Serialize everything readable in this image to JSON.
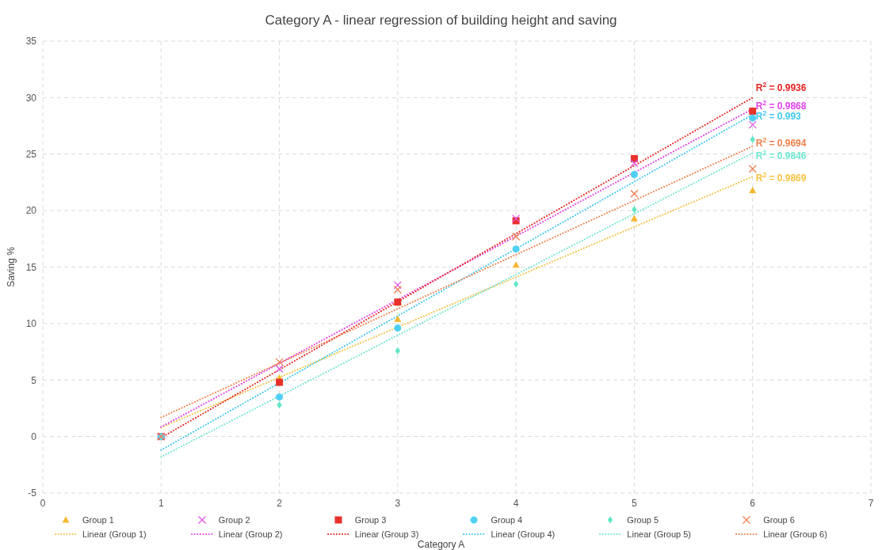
{
  "chart_data": {
    "type": "scatter",
    "title": "Category A - linear regression of building height and saving",
    "xlabel": "Category A",
    "ylabel": "Saving %",
    "xlim": [
      0,
      7
    ],
    "xticks": [
      0,
      1,
      2,
      3,
      4,
      5,
      6,
      7
    ],
    "ylim": [
      -5,
      35
    ],
    "yticks": [
      -5,
      0,
      5,
      10,
      15,
      20,
      25,
      30,
      35
    ],
    "grid": true,
    "legend": "bottom",
    "series": [
      {
        "name": "Group 1",
        "marker": "triangle",
        "color": "#f4b731",
        "x": [
          2,
          3,
          4,
          5,
          6
        ],
        "values": [
          5.2,
          10.4,
          15.2,
          19.3,
          21.8
        ]
      },
      {
        "name": "Group 2",
        "marker": "cross",
        "color": "#e055e8",
        "x": [
          1,
          2,
          3,
          4,
          5,
          6
        ],
        "values": [
          0,
          6.0,
          13.4,
          19.3,
          24.2,
          27.6
        ]
      },
      {
        "name": "Group 3",
        "marker": "square",
        "color": "#e8312a",
        "x": [
          1,
          2,
          3,
          4,
          5,
          6
        ],
        "values": [
          0,
          4.8,
          11.9,
          19.1,
          24.6,
          28.8
        ]
      },
      {
        "name": "Group 4",
        "marker": "circle",
        "color": "#4fd0f5",
        "x": [
          1,
          2,
          3,
          4,
          5,
          6
        ],
        "values": [
          0,
          3.5,
          9.6,
          16.6,
          23.2,
          28.2
        ]
      },
      {
        "name": "Group 5",
        "marker": "diamond",
        "color": "#5ee8c4",
        "x": [
          1,
          2,
          3,
          4,
          5,
          6
        ],
        "values": [
          0,
          2.8,
          7.6,
          13.5,
          20.1,
          26.3
        ]
      },
      {
        "name": "Group 6",
        "marker": "cross",
        "color": "#f07f4f",
        "x": [
          1,
          2,
          3,
          4,
          5,
          6
        ],
        "values": [
          0,
          6.6,
          13.0,
          17.7,
          21.5,
          23.7
        ]
      },
      {
        "name": "Linear (Group 1)",
        "type": "line",
        "line_style": "dotted",
        "color": "#f5c242",
        "x": [
          1,
          6
        ],
        "values": [
          0.8,
          23.0
        ]
      },
      {
        "name": "Linear (Group 2)",
        "type": "line",
        "line_style": "dotted",
        "color": "#e040e8",
        "x": [
          1,
          6
        ],
        "values": [
          0.85,
          29.0
        ]
      },
      {
        "name": "Linear (Group 3)",
        "type": "line",
        "line_style": "dotted",
        "color": "#e8231f",
        "x": [
          1,
          6
        ],
        "values": [
          -0.1,
          30.0
        ]
      },
      {
        "name": "Linear (Group 4)",
        "type": "line",
        "line_style": "dotted",
        "color": "#3fc8f0",
        "x": [
          1,
          6
        ],
        "values": [
          -1.2,
          28.5
        ]
      },
      {
        "name": "Linear (Group 5)",
        "type": "line",
        "line_style": "dotted",
        "color": "#6ee8d0",
        "x": [
          1,
          6
        ],
        "values": [
          -1.8,
          25.1
        ]
      },
      {
        "name": "Linear (Group 6)",
        "type": "line",
        "line_style": "dotted",
        "color": "#f0804a",
        "x": [
          1,
          6
        ],
        "values": [
          1.7,
          25.7
        ]
      }
    ],
    "annotations": [
      "R$^{2}$ = 0.9869",
      "R$^{2}$ = 0.9868",
      "R$^{2}$ = 0.9936",
      "R$^{2}$ = 0.993",
      "R$^{2}$ = 0.9846",
      "R$^{2}$ = 0.9694"
    ]
  }
}
